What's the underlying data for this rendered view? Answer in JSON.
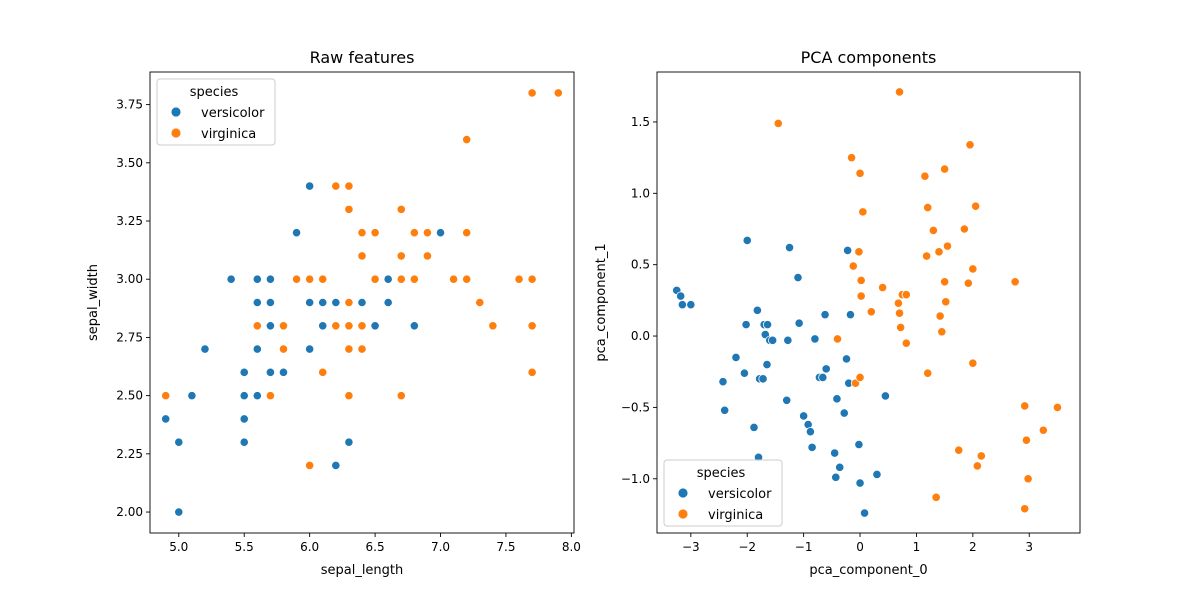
{
  "colors": {
    "versicolor": "#1f77b4",
    "virginica": "#ff7f0e"
  },
  "chart_data": [
    {
      "type": "scatter",
      "title": "Raw features",
      "xlabel": "sepal_length",
      "ylabel": "sepal_width",
      "xlim": [
        4.78,
        8.02
      ],
      "ylim": [
        1.91,
        3.89
      ],
      "xticks": [
        5.0,
        5.5,
        6.0,
        6.5,
        7.0,
        7.5,
        8.0
      ],
      "xtick_labels": [
        "5.0",
        "5.5",
        "6.0",
        "6.5",
        "7.0",
        "7.5",
        "8.0"
      ],
      "yticks": [
        2.0,
        2.25,
        2.5,
        2.75,
        3.0,
        3.25,
        3.5,
        3.75
      ],
      "ytick_labels": [
        "2.00",
        "2.25",
        "2.50",
        "2.75",
        "3.00",
        "3.25",
        "3.50",
        "3.75"
      ],
      "legend": {
        "title": "species",
        "placement": "top-left",
        "entries": [
          "versicolor",
          "virginica"
        ]
      },
      "grid": false,
      "series": [
        {
          "name": "versicolor",
          "points": [
            [
              4.9,
              2.4
            ],
            [
              5.0,
              2.3
            ],
            [
              5.0,
              2.0
            ],
            [
              5.1,
              2.5
            ],
            [
              5.2,
              2.7
            ],
            [
              5.4,
              3.0
            ],
            [
              5.5,
              2.6
            ],
            [
              5.5,
              2.5
            ],
            [
              5.5,
              2.4
            ],
            [
              5.5,
              2.3
            ],
            [
              5.6,
              3.0
            ],
            [
              5.6,
              2.9
            ],
            [
              5.6,
              2.7
            ],
            [
              5.6,
              2.5
            ],
            [
              5.7,
              3.0
            ],
            [
              5.7,
              2.9
            ],
            [
              5.7,
              2.8
            ],
            [
              5.7,
              2.6
            ],
            [
              5.8,
              2.7
            ],
            [
              5.8,
              2.6
            ],
            [
              5.9,
              3.2
            ],
            [
              5.9,
              3.0
            ],
            [
              6.0,
              3.4
            ],
            [
              6.0,
              2.9
            ],
            [
              6.0,
              2.7
            ],
            [
              6.1,
              2.9
            ],
            [
              6.1,
              2.8
            ],
            [
              6.2,
              2.9
            ],
            [
              6.2,
              2.2
            ],
            [
              6.3,
              2.5
            ],
            [
              6.3,
              2.3
            ],
            [
              6.4,
              2.9
            ],
            [
              6.5,
              2.8
            ],
            [
              6.6,
              3.0
            ],
            [
              6.6,
              2.9
            ],
            [
              6.7,
              3.1
            ],
            [
              6.7,
              3.0
            ],
            [
              6.8,
              2.8
            ],
            [
              6.9,
              3.1
            ],
            [
              7.0,
              3.2
            ]
          ]
        },
        {
          "name": "virginica",
          "points": [
            [
              4.9,
              2.5
            ],
            [
              5.6,
              2.8
            ],
            [
              5.7,
              2.5
            ],
            [
              5.8,
              2.8
            ],
            [
              5.8,
              2.7
            ],
            [
              5.9,
              3.0
            ],
            [
              6.0,
              3.0
            ],
            [
              6.0,
              2.2
            ],
            [
              6.1,
              3.0
            ],
            [
              6.1,
              2.6
            ],
            [
              6.2,
              3.4
            ],
            [
              6.2,
              2.8
            ],
            [
              6.3,
              3.4
            ],
            [
              6.3,
              3.3
            ],
            [
              6.3,
              2.9
            ],
            [
              6.3,
              2.8
            ],
            [
              6.3,
              2.7
            ],
            [
              6.3,
              2.5
            ],
            [
              6.4,
              3.2
            ],
            [
              6.4,
              3.1
            ],
            [
              6.4,
              2.8
            ],
            [
              6.4,
              2.7
            ],
            [
              6.5,
              3.2
            ],
            [
              6.5,
              3.0
            ],
            [
              6.7,
              3.3
            ],
            [
              6.7,
              3.1
            ],
            [
              6.7,
              3.0
            ],
            [
              6.7,
              2.5
            ],
            [
              6.8,
              3.2
            ],
            [
              6.8,
              3.0
            ],
            [
              6.9,
              3.2
            ],
            [
              6.9,
              3.1
            ],
            [
              7.1,
              3.0
            ],
            [
              7.2,
              3.6
            ],
            [
              7.2,
              3.2
            ],
            [
              7.2,
              3.0
            ],
            [
              7.3,
              2.9
            ],
            [
              7.4,
              2.8
            ],
            [
              7.6,
              3.0
            ],
            [
              7.7,
              3.8
            ],
            [
              7.7,
              3.0
            ],
            [
              7.7,
              2.8
            ],
            [
              7.7,
              2.6
            ],
            [
              7.9,
              3.8
            ]
          ]
        }
      ]
    },
    {
      "type": "scatter",
      "title": "PCA components",
      "xlabel": "pca_component_0",
      "ylabel": "pca_component_1",
      "xlim": [
        -3.6,
        3.9
      ],
      "ylim": [
        -1.38,
        1.85
      ],
      "xticks": [
        -3,
        -2,
        -1,
        0,
        1,
        2,
        3
      ],
      "xtick_labels": [
        "−3",
        "−2",
        "−1",
        "0",
        "1",
        "2",
        "3"
      ],
      "yticks": [
        -1.0,
        -0.5,
        0.0,
        0.5,
        1.0,
        1.5
      ],
      "ytick_labels": [
        "−1.0",
        "−0.5",
        "0.0",
        "0.5",
        "1.0",
        "1.5"
      ],
      "legend": {
        "title": "species",
        "placement": "bottom-left",
        "entries": [
          "versicolor",
          "virginica"
        ]
      },
      "grid": false,
      "series": [
        {
          "name": "versicolor",
          "points": [
            [
              -3.25,
              0.32
            ],
            [
              -3.18,
              0.28
            ],
            [
              -3.15,
              0.22
            ],
            [
              -3.0,
              0.22
            ],
            [
              -2.43,
              -0.32
            ],
            [
              -2.4,
              -0.52
            ],
            [
              -2.2,
              -0.15
            ],
            [
              -2.05,
              -0.26
            ],
            [
              -2.02,
              0.08
            ],
            [
              -2.0,
              0.67
            ],
            [
              -1.88,
              -0.64
            ],
            [
              -1.82,
              0.18
            ],
            [
              -1.8,
              -0.85
            ],
            [
              -1.78,
              -0.3
            ],
            [
              -1.72,
              -0.3
            ],
            [
              -1.7,
              0.08
            ],
            [
              -1.68,
              0.01
            ],
            [
              -1.65,
              -0.2
            ],
            [
              -1.64,
              0.08
            ],
            [
              -1.6,
              -0.03
            ],
            [
              -1.55,
              -0.03
            ],
            [
              -1.3,
              -0.45
            ],
            [
              -1.28,
              -0.03
            ],
            [
              -1.25,
              0.62
            ],
            [
              -1.1,
              0.41
            ],
            [
              -1.08,
              0.09
            ],
            [
              -1.0,
              -0.56
            ],
            [
              -0.92,
              -0.62
            ],
            [
              -0.88,
              -0.67
            ],
            [
              -0.85,
              -0.78
            ],
            [
              -0.8,
              -0.02
            ],
            [
              -0.72,
              -0.29
            ],
            [
              -0.66,
              -0.29
            ],
            [
              -0.62,
              0.15
            ],
            [
              -0.6,
              -0.23
            ],
            [
              -0.45,
              -0.82
            ],
            [
              -0.43,
              -0.99
            ],
            [
              -0.41,
              -0.44
            ],
            [
              -0.36,
              -0.92
            ],
            [
              -0.28,
              -0.54
            ],
            [
              -0.24,
              -0.16
            ],
            [
              -0.22,
              0.6
            ],
            [
              -0.2,
              -0.33
            ],
            [
              -0.17,
              0.15
            ],
            [
              -0.02,
              -0.76
            ],
            [
              0.0,
              -1.03
            ],
            [
              0.08,
              -1.24
            ],
            [
              0.3,
              -0.97
            ],
            [
              0.45,
              -0.42
            ]
          ]
        },
        {
          "name": "virginica",
          "points": [
            [
              -1.45,
              1.49
            ],
            [
              -0.4,
              -0.02
            ],
            [
              -0.15,
              1.25
            ],
            [
              -0.12,
              0.49
            ],
            [
              -0.08,
              -0.33
            ],
            [
              -0.02,
              0.59
            ],
            [
              0.0,
              -0.29
            ],
            [
              0.0,
              1.14
            ],
            [
              0.02,
              0.39
            ],
            [
              0.02,
              0.28
            ],
            [
              0.05,
              0.87
            ],
            [
              0.2,
              0.17
            ],
            [
              0.4,
              0.34
            ],
            [
              0.68,
              0.23
            ],
            [
              0.7,
              0.16
            ],
            [
              0.7,
              1.71
            ],
            [
              0.72,
              0.06
            ],
            [
              0.75,
              0.29
            ],
            [
              0.82,
              -0.05
            ],
            [
              0.82,
              0.29
            ],
            [
              1.15,
              1.12
            ],
            [
              1.18,
              0.56
            ],
            [
              1.2,
              -0.26
            ],
            [
              1.2,
              0.9
            ],
            [
              1.3,
              0.74
            ],
            [
              1.35,
              -1.13
            ],
            [
              1.4,
              0.59
            ],
            [
              1.42,
              0.14
            ],
            [
              1.45,
              0.03
            ],
            [
              1.5,
              0.38
            ],
            [
              1.5,
              1.17
            ],
            [
              1.52,
              0.24
            ],
            [
              1.55,
              0.63
            ],
            [
              1.75,
              -0.8
            ],
            [
              1.85,
              0.75
            ],
            [
              1.92,
              0.37
            ],
            [
              1.95,
              1.34
            ],
            [
              2.0,
              0.47
            ],
            [
              2.0,
              -0.19
            ],
            [
              2.05,
              0.91
            ],
            [
              2.08,
              -0.91
            ],
            [
              2.15,
              -0.84
            ],
            [
              2.75,
              0.38
            ],
            [
              2.92,
              -1.21
            ],
            [
              2.92,
              -0.49
            ],
            [
              2.95,
              -0.73
            ],
            [
              2.98,
              -1.0
            ],
            [
              3.25,
              -0.66
            ],
            [
              3.5,
              -0.5
            ]
          ]
        }
      ]
    }
  ]
}
